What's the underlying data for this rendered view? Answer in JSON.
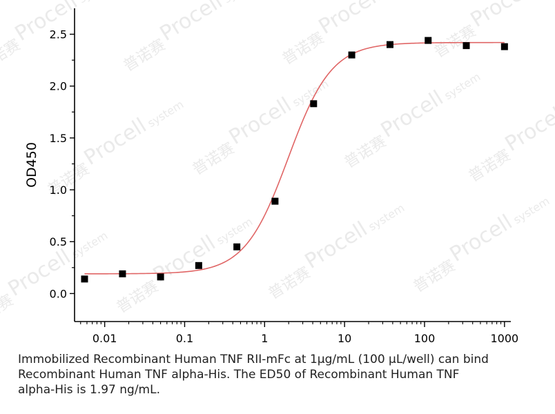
{
  "chart_data": {
    "type": "scatter",
    "x_scale": "log",
    "xlim": [
      0.0042,
      1200
    ],
    "ylim": [
      -0.27,
      2.75
    ],
    "x_ticks": [
      0.01,
      0.1,
      1,
      10,
      100,
      1000
    ],
    "x_tick_labels": [
      "0.01",
      "0.1",
      "1",
      "10",
      "100",
      "1000"
    ],
    "y_ticks": [
      0.0,
      0.5,
      1.0,
      1.5,
      2.0,
      2.5
    ],
    "y_tick_labels": [
      "0.0",
      "0.5",
      "1.0",
      "1.5",
      "2.0",
      "2.5"
    ],
    "xlabel": "",
    "ylabel": "OD450",
    "grid": false,
    "series": [
      {
        "x": [
          0.0056,
          0.0167,
          0.05,
          0.15,
          0.45,
          1.35,
          4.1,
          12.3,
          37,
          111,
          333,
          1000
        ],
        "y": [
          0.14,
          0.19,
          0.16,
          0.27,
          0.45,
          0.89,
          1.83,
          2.3,
          2.4,
          2.44,
          2.39,
          2.38
        ],
        "marker": "square",
        "color": "#000000"
      }
    ],
    "fit": {
      "model": "4PL",
      "bottom": 0.19,
      "top": 2.42,
      "ec50": 1.97,
      "hill": 1.6,
      "color": "#e06565"
    }
  },
  "watermark": {
    "brand": "Procell",
    "sub": "system",
    "cn": "普诺赛",
    "color": "#e6e6e6"
  },
  "caption": {
    "line1": "Immobilized Recombinant Human TNF RII-mFc at 1µg/mL (100 µL/well) can bind",
    "line2": "Recombinant Human TNF alpha-His. The ED50 of Recombinant Human TNF",
    "line3": "alpha-His is 1.97 ng/mL."
  }
}
